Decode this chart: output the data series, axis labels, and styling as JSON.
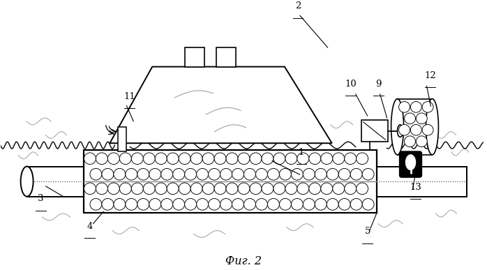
{
  "fig_width": 6.98,
  "fig_height": 3.87,
  "dpi": 100,
  "bg_color": "#ffffff",
  "caption": "Фиг. 2"
}
